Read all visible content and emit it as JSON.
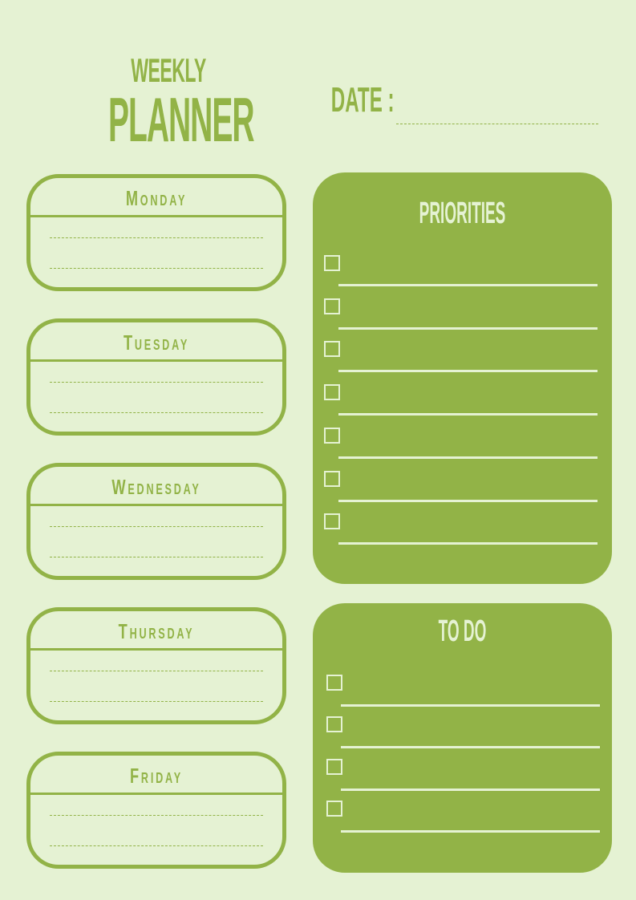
{
  "header": {
    "title_line1": "Weekly",
    "title_line2": "Planner",
    "date_label": "Date :"
  },
  "days": [
    "Monday",
    "Tuesday",
    "Wednesday",
    "Thursday",
    "Friday"
  ],
  "priorities": {
    "title": "Priorities",
    "item_count": 7
  },
  "todo": {
    "title": "To Do",
    "item_count": 4
  },
  "colors": {
    "background": "#e5f2d3",
    "accent": "#92b347"
  }
}
